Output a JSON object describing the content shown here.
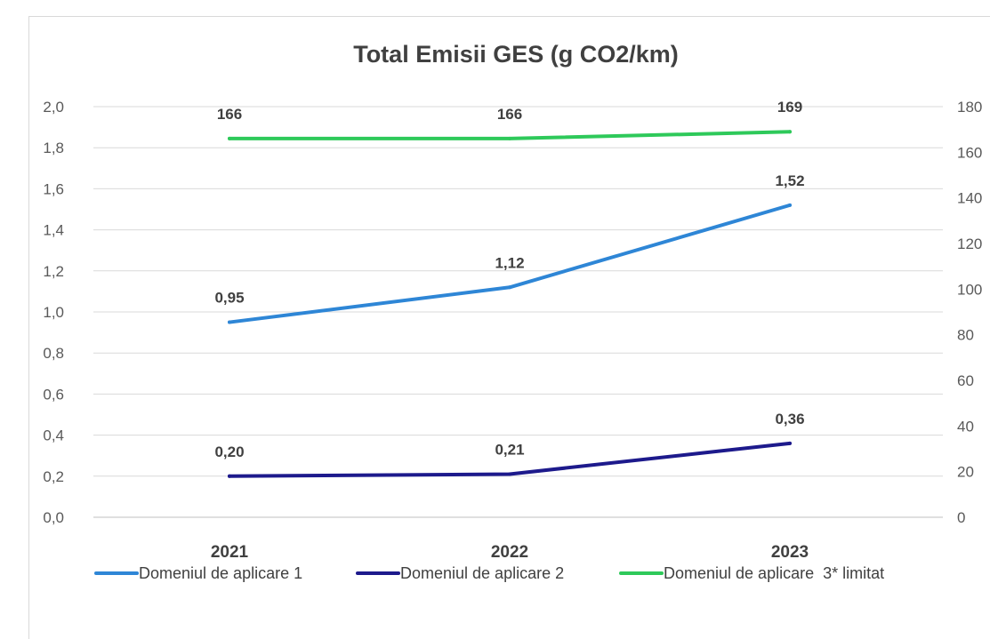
{
  "chart_data": {
    "type": "line",
    "title": "Total Emisii GES (g CO2/km)",
    "categories": [
      "2021",
      "2022",
      "2023"
    ],
    "y_left": {
      "min": 0,
      "max": 2,
      "step": 0.2,
      "ticks": [
        "0,0",
        "0,2",
        "0,4",
        "0,6",
        "0,8",
        "1,0",
        "1,2",
        "1,4",
        "1,6",
        "1,8",
        "2,0"
      ]
    },
    "y_right": {
      "min": 0,
      "max": 180,
      "step": 20,
      "ticks": [
        "0",
        "20",
        "40",
        "60",
        "80",
        "100",
        "120",
        "140",
        "160",
        "180"
      ]
    },
    "grid": true,
    "legend_position": "bottom",
    "series": [
      {
        "name": "Domeniul de aplicare 1",
        "axis": "left",
        "color": "#2e86d6",
        "values": [
          0.95,
          1.12,
          1.52
        ],
        "labels": [
          "0,95",
          "1,12",
          "1,52"
        ]
      },
      {
        "name": "Domeniul de aplicare 2",
        "axis": "left",
        "color": "#1d1a8c",
        "values": [
          0.2,
          0.21,
          0.36
        ],
        "labels": [
          "0,20",
          "0,21",
          "0,36"
        ]
      },
      {
        "name": "Domeniul de aplicare  3* limitat",
        "axis": "right",
        "color": "#2ec95a",
        "values": [
          166,
          166,
          169
        ],
        "labels": [
          "166",
          "166",
          "169"
        ]
      }
    ]
  }
}
